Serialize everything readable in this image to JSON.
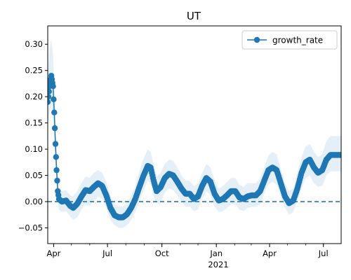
{
  "chart_data": {
    "type": "line",
    "title": "UT",
    "xlabel": "",
    "ylabel": "",
    "x_tick_labels": [
      "Apr",
      "Jul",
      "Oct",
      "Jan",
      "Apr",
      "Jul"
    ],
    "x_tick_dates": [
      "2020-04-01",
      "2020-07-01",
      "2020-10-01",
      "2021-01-01",
      "2021-04-01",
      "2021-07-01"
    ],
    "x_year_label": "2021",
    "xlim": [
      "2020-03-22",
      "2021-07-31"
    ],
    "ylim": [
      -0.08,
      0.335
    ],
    "y_ticks": [
      -0.05,
      0.0,
      0.05,
      0.1,
      0.15,
      0.2,
      0.25,
      0.3
    ],
    "y_tick_labels": [
      "−0.05",
      "0.00",
      "0.05",
      "0.10",
      "0.15",
      "0.20",
      "0.25",
      "0.30"
    ],
    "reference_line": {
      "value": 0.0,
      "style": "dashed"
    },
    "legend": {
      "position": "top-right",
      "entries": [
        "growth_rate"
      ]
    },
    "series": [
      {
        "name": "growth_rate",
        "color": "#1f77b4",
        "band_color": "#c6dbef",
        "marker": "circle",
        "points": [
          [
            "2020-03-22",
            0.19,
            0.15,
            0.24
          ],
          [
            "2020-03-25",
            0.22,
            0.17,
            0.29
          ],
          [
            "2020-03-28",
            0.24,
            0.18,
            0.31
          ],
          [
            "2020-03-31",
            0.22,
            0.16,
            0.28
          ],
          [
            "2020-04-02",
            0.17,
            0.12,
            0.22
          ],
          [
            "2020-04-04",
            0.11,
            0.07,
            0.15
          ],
          [
            "2020-04-06",
            0.06,
            0.03,
            0.09
          ],
          [
            "2020-04-08",
            0.02,
            0.0,
            0.05
          ],
          [
            "2020-04-10",
            0.005,
            -0.015,
            0.025
          ],
          [
            "2020-04-15",
            0.0,
            -0.02,
            0.02
          ],
          [
            "2020-04-22",
            0.002,
            -0.018,
            0.022
          ],
          [
            "2020-04-29",
            -0.008,
            -0.028,
            0.012
          ],
          [
            "2020-05-04",
            -0.012,
            -0.035,
            0.01
          ],
          [
            "2020-05-11",
            -0.004,
            -0.03,
            0.02
          ],
          [
            "2020-05-18",
            0.01,
            -0.015,
            0.035
          ],
          [
            "2020-05-25",
            0.022,
            -0.005,
            0.048
          ],
          [
            "2020-06-01",
            0.02,
            -0.008,
            0.045
          ],
          [
            "2020-06-08",
            0.028,
            0.0,
            0.055
          ],
          [
            "2020-06-15",
            0.035,
            0.01,
            0.06
          ],
          [
            "2020-06-22",
            0.03,
            0.005,
            0.055
          ],
          [
            "2020-06-29",
            0.012,
            -0.012,
            0.038
          ],
          [
            "2020-07-06",
            -0.012,
            -0.035,
            0.012
          ],
          [
            "2020-07-13",
            -0.026,
            -0.045,
            -0.004
          ],
          [
            "2020-07-20",
            -0.03,
            -0.05,
            -0.01
          ],
          [
            "2020-07-27",
            -0.03,
            -0.05,
            -0.01
          ],
          [
            "2020-08-03",
            -0.024,
            -0.045,
            -0.002
          ],
          [
            "2020-08-10",
            -0.012,
            -0.035,
            0.012
          ],
          [
            "2020-08-17",
            0.005,
            -0.02,
            0.03
          ],
          [
            "2020-08-24",
            0.028,
            0.0,
            0.058
          ],
          [
            "2020-08-31",
            0.05,
            0.02,
            0.082
          ],
          [
            "2020-09-07",
            0.068,
            0.04,
            0.1
          ],
          [
            "2020-09-12",
            0.065,
            0.035,
            0.095
          ],
          [
            "2020-09-17",
            0.04,
            0.01,
            0.07
          ],
          [
            "2020-09-22",
            0.02,
            -0.005,
            0.048
          ],
          [
            "2020-09-29",
            0.028,
            0.0,
            0.055
          ],
          [
            "2020-10-06",
            0.045,
            0.018,
            0.072
          ],
          [
            "2020-10-13",
            0.053,
            0.025,
            0.08
          ],
          [
            "2020-10-20",
            0.05,
            0.022,
            0.078
          ],
          [
            "2020-10-27",
            0.038,
            0.012,
            0.065
          ],
          [
            "2020-11-03",
            0.025,
            0.0,
            0.05
          ],
          [
            "2020-11-10",
            0.015,
            -0.01,
            0.04
          ],
          [
            "2020-11-17",
            0.015,
            -0.01,
            0.04
          ],
          [
            "2020-11-24",
            0.005,
            -0.018,
            0.03
          ],
          [
            "2020-12-01",
            0.01,
            -0.015,
            0.035
          ],
          [
            "2020-12-08",
            0.03,
            0.005,
            0.055
          ],
          [
            "2020-12-15",
            0.045,
            0.02,
            0.072
          ],
          [
            "2020-12-22",
            0.038,
            0.012,
            0.065
          ],
          [
            "2020-12-29",
            0.015,
            -0.01,
            0.04
          ],
          [
            "2021-01-05",
            0.002,
            -0.02,
            0.025
          ],
          [
            "2021-01-12",
            0.005,
            -0.018,
            0.03
          ],
          [
            "2021-01-19",
            0.012,
            -0.012,
            0.038
          ],
          [
            "2021-01-26",
            0.02,
            -0.005,
            0.045
          ],
          [
            "2021-02-02",
            0.02,
            -0.005,
            0.045
          ],
          [
            "2021-02-09",
            0.008,
            -0.015,
            0.032
          ],
          [
            "2021-02-16",
            0.005,
            -0.018,
            0.028
          ],
          [
            "2021-02-23",
            0.01,
            -0.012,
            0.035
          ],
          [
            "2021-03-02",
            0.012,
            -0.01,
            0.035
          ],
          [
            "2021-03-09",
            0.012,
            -0.01,
            0.035
          ],
          [
            "2021-03-16",
            0.02,
            -0.005,
            0.045
          ],
          [
            "2021-03-23",
            0.04,
            0.015,
            0.065
          ],
          [
            "2021-03-30",
            0.06,
            0.032,
            0.088
          ],
          [
            "2021-04-06",
            0.065,
            0.038,
            0.095
          ],
          [
            "2021-04-13",
            0.06,
            0.032,
            0.09
          ],
          [
            "2021-04-20",
            0.035,
            0.01,
            0.062
          ],
          [
            "2021-04-27",
            0.01,
            -0.012,
            0.035
          ],
          [
            "2021-05-04",
            -0.003,
            -0.025,
            0.02
          ],
          [
            "2021-05-11",
            0.002,
            -0.02,
            0.025
          ],
          [
            "2021-05-18",
            0.025,
            0.0,
            0.055
          ],
          [
            "2021-05-25",
            0.055,
            0.025,
            0.085
          ],
          [
            "2021-06-01",
            0.075,
            0.045,
            0.105
          ],
          [
            "2021-06-08",
            0.08,
            0.05,
            0.11
          ],
          [
            "2021-06-15",
            0.065,
            0.035,
            0.095
          ],
          [
            "2021-06-22",
            0.055,
            0.028,
            0.085
          ],
          [
            "2021-06-29",
            0.06,
            0.03,
            0.09
          ],
          [
            "2021-07-06",
            0.08,
            0.05,
            0.115
          ],
          [
            "2021-07-13",
            0.089,
            0.058,
            0.125
          ],
          [
            "2021-07-20",
            0.089,
            0.058,
            0.125
          ],
          [
            "2021-07-31",
            0.089,
            0.058,
            0.125
          ]
        ]
      }
    ]
  }
}
